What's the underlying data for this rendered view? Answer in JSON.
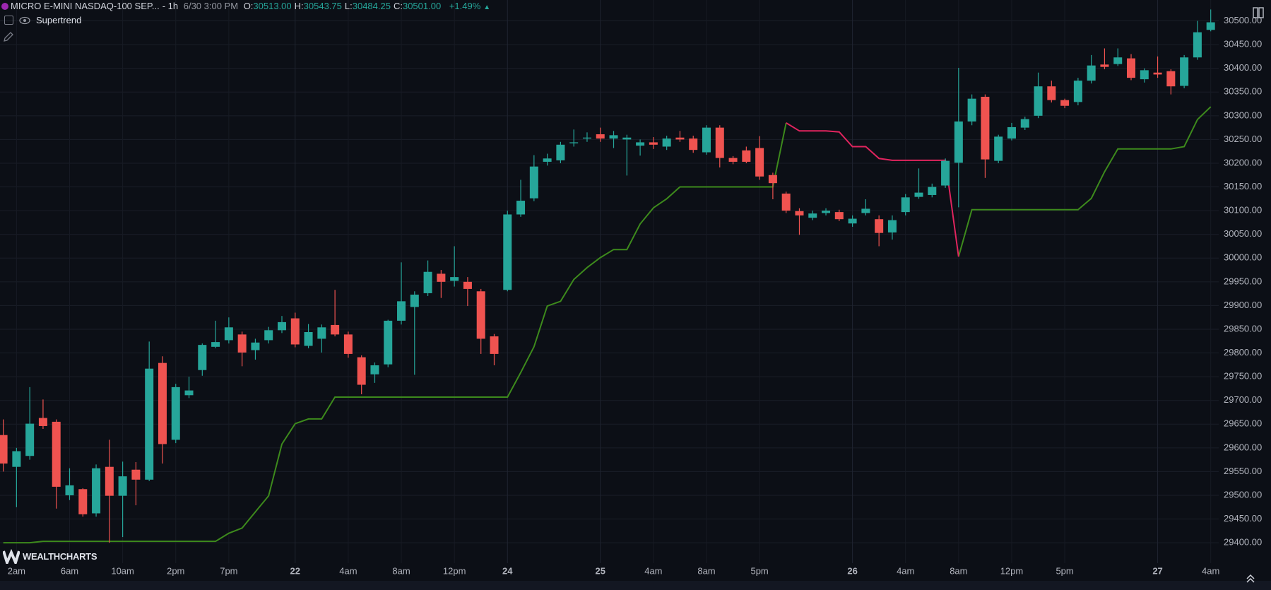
{
  "header": {
    "symbol": "MICRO E-MINI NASDAQ-100 SEP...",
    "interval": "- 1h",
    "datetime": "6/30 3:00 PM",
    "ohlc": [
      {
        "label": "O:",
        "value": "30513.00"
      },
      {
        "label": "H:",
        "value": "30543.75"
      },
      {
        "label": "L:",
        "value": "30484.25"
      },
      {
        "label": "C:",
        "value": "30501.00"
      }
    ],
    "change": "+1.49%"
  },
  "logo": "WEALTHCHARTS",
  "chart_data": {
    "type": "candlestick",
    "categories": [
      null,
      "2am",
      null,
      null,
      null,
      "6am",
      null,
      null,
      null,
      "10am",
      null,
      null,
      null,
      "2pm",
      null,
      null,
      null,
      "7pm",
      null,
      null,
      null,
      null,
      "22",
      null,
      null,
      null,
      "4am",
      null,
      null,
      null,
      "8am",
      null,
      null,
      null,
      "12pm",
      null,
      null,
      null,
      "24",
      null,
      null,
      null,
      null,
      null,
      null,
      "25",
      null,
      null,
      null,
      "4am",
      null,
      null,
      null,
      "8am",
      null,
      null,
      null,
      "5pm",
      null,
      null,
      null,
      null,
      null,
      null,
      "26",
      null,
      null,
      null,
      "4am",
      null,
      null,
      null,
      "8am",
      null,
      null,
      null,
      "12pm",
      null,
      null,
      null,
      "5pm",
      null,
      null,
      null,
      null,
      null,
      null,
      "27",
      null,
      null,
      null,
      "4am"
    ],
    "open": [
      29627,
      29560,
      29583,
      29663,
      29655,
      29500,
      29513,
      29462,
      29560,
      29499,
      29554,
      29533,
      29779,
      29617,
      29711,
      29764,
      29813,
      29827,
      29839,
      29806,
      29827,
      29848,
      29873,
      29815,
      29830,
      29859,
      29839,
      29791,
      29755,
      29776,
      29868,
      29897,
      29926,
      29967,
      29952,
      29950,
      29930,
      29835,
      29933,
      30092,
      30126,
      30203,
      30206,
      30242,
      30252,
      30261,
      30252,
      30250,
      30237,
      30244,
      30235,
      30254,
      30252,
      30223,
      30275,
      30211,
      30227,
      30232,
      30175,
      30136,
      30099,
      30085,
      30095,
      30097,
      30073,
      30095,
      30082,
      30054,
      30097,
      30129,
      30133,
      30153,
      30201,
      30288,
      30340,
      30205,
      30252,
      30275,
      30300,
      30362,
      30333,
      30329,
      30374,
      30408,
      30409,
      30421,
      30377,
      30391,
      30394,
      30363,
      30423,
      30481
    ],
    "high": [
      29660,
      29600,
      29728,
      29702,
      29660,
      29557,
      29515,
      29565,
      29617,
      29571,
      29570,
      29824,
      29793,
      29735,
      29750,
      29820,
      29868,
      29875,
      29845,
      29830,
      29855,
      29878,
      29885,
      29861,
      29860,
      29933,
      29845,
      29795,
      29780,
      29870,
      29991,
      29930,
      29995,
      29975,
      30025,
      29960,
      29935,
      29840,
      30100,
      30165,
      30217,
      30220,
      30245,
      30271,
      30265,
      30275,
      30268,
      30260,
      30250,
      30255,
      30258,
      30268,
      30258,
      30280,
      30280,
      30215,
      30235,
      30257,
      30180,
      30140,
      30105,
      30100,
      30105,
      30102,
      30090,
      30124,
      30090,
      30090,
      30135,
      30189,
      30157,
      30210,
      30401,
      30345,
      30345,
      30260,
      30285,
      30298,
      30391,
      30374,
      30336,
      30380,
      30428,
      30442,
      30442,
      30430,
      30400,
      30425,
      30398,
      30428,
      30500,
      30524
    ],
    "low": [
      29550,
      29475,
      29575,
      29640,
      29472,
      29490,
      29455,
      29455,
      29400,
      29412,
      29479,
      29530,
      29567,
      29610,
      29705,
      29752,
      29810,
      29820,
      29772,
      29786,
      29820,
      29842,
      29812,
      29810,
      29801,
      29835,
      29790,
      29713,
      29737,
      29770,
      29860,
      29754,
      29920,
      29916,
      29940,
      29899,
      29798,
      29774,
      29930,
      30087,
      30120,
      30195,
      30200,
      30235,
      30245,
      30245,
      30232,
      30174,
      30216,
      30230,
      30228,
      30245,
      30222,
      30218,
      30191,
      30198,
      30200,
      30165,
      30124,
      30095,
      30049,
      30080,
      30090,
      30078,
      30066,
      30090,
      30025,
      30039,
      30090,
      30125,
      30128,
      30148,
      30107,
      30280,
      30169,
      30200,
      30248,
      30270,
      30295,
      30328,
      30316,
      30322,
      30368,
      30398,
      30405,
      30375,
      30370,
      30380,
      30345,
      30358,
      30418,
      30478
    ],
    "close": [
      29567,
      29593,
      29651,
      29646,
      29518,
      29521,
      29460,
      29557,
      29499,
      29540,
      29533,
      29767,
      29608,
      29728,
      29721,
      29817,
      29823,
      29854,
      29801,
      29822,
      29848,
      29865,
      29818,
      29844,
      29854,
      29839,
      29798,
      29733,
      29774,
      29868,
      29909,
      29923,
      29971,
      29950,
      29960,
      29935,
      29830,
      29798,
      30092,
      30121,
      30193,
      30210,
      30239,
      30244,
      30254,
      30252,
      30259,
      30254,
      30244,
      30239,
      30252,
      30250,
      30228,
      30275,
      30211,
      30203,
      30203,
      30172,
      30158,
      30100,
      30090,
      30094,
      30100,
      30082,
      30083,
      30104,
      30053,
      30080,
      30128,
      30138,
      30150,
      30205,
      30288,
      30336,
      30208,
      30256,
      30276,
      30293,
      30362,
      30333,
      30321,
      30374,
      30406,
      30403,
      30423,
      30380,
      30396,
      30387,
      30362,
      30423,
      30476,
      30497
    ],
    "up_color": "#26a69a",
    "down_color": "#ef5350",
    "ylim": [
      29357,
      30544
    ],
    "yticks": [
      {
        "value": 29400,
        "label": "29400.00"
      },
      {
        "value": 29450,
        "label": "29450.00"
      },
      {
        "value": 29500,
        "label": "29500.00"
      },
      {
        "value": 29550,
        "label": "29550.00"
      },
      {
        "value": 29600,
        "label": "29600.00"
      },
      {
        "value": 29650,
        "label": "29650.00"
      },
      {
        "value": 29700,
        "label": "29700.00"
      },
      {
        "value": 29750,
        "label": "29750.00"
      },
      {
        "value": 29800,
        "label": "29800.00"
      },
      {
        "value": 29850,
        "label": "29850.00"
      },
      {
        "value": 29900,
        "label": "29900.00"
      },
      {
        "value": 29950,
        "label": "29950.00"
      },
      {
        "value": 30000,
        "label": "30000.00"
      },
      {
        "value": 30050,
        "label": "30050.00"
      },
      {
        "value": 30100,
        "label": "30100.00"
      },
      {
        "value": 30150,
        "label": "30150.00"
      },
      {
        "value": 30200,
        "label": "30200.00"
      },
      {
        "value": 30250,
        "label": "30250.00"
      },
      {
        "value": 30300,
        "label": "30300.00"
      },
      {
        "value": 30350,
        "label": "30350.00"
      },
      {
        "value": 30400,
        "label": "30400.00"
      },
      {
        "value": 30450,
        "label": "30450.00"
      },
      {
        "value": 30500,
        "label": "30500.00"
      }
    ],
    "grid": true,
    "overlay": {
      "name": "Supertrend",
      "up_color": "#3d8a1c",
      "down_color": "#e0245e",
      "up": [
        29400,
        29400,
        29400,
        29403,
        29403,
        29403,
        29403,
        29403,
        29403,
        29403,
        29403,
        29403,
        29403,
        29403,
        29403,
        29403,
        29403,
        29420,
        29431,
        29465,
        29499,
        29608,
        29651,
        29661,
        29661,
        29707,
        29707,
        29707,
        29707,
        29707,
        29707,
        29707,
        29707,
        29707,
        29707,
        29707,
        29707,
        29707,
        29707,
        29759,
        29813,
        29899,
        29909,
        29955,
        29980,
        30001,
        30018,
        30018,
        30072,
        30106,
        30125,
        30150,
        30150,
        30150,
        30150,
        30150,
        30150,
        30150,
        30150,
        30285,
        null,
        null,
        null,
        null,
        null,
        null,
        null,
        null,
        null,
        null,
        null,
        null,
        30003,
        30102,
        30102,
        30102,
        30102,
        30102,
        30102,
        30102,
        30102,
        30102,
        30126,
        30182,
        30230,
        30230,
        30230,
        30230,
        30230,
        30235,
        30292,
        30319
      ],
      "down": [
        null,
        null,
        null,
        null,
        null,
        null,
        null,
        null,
        null,
        null,
        null,
        null,
        null,
        null,
        null,
        null,
        null,
        null,
        null,
        null,
        null,
        null,
        null,
        null,
        null,
        null,
        null,
        null,
        null,
        null,
        null,
        null,
        null,
        null,
        null,
        null,
        null,
        null,
        null,
        null,
        null,
        null,
        null,
        null,
        null,
        null,
        null,
        null,
        null,
        null,
        null,
        null,
        null,
        null,
        null,
        null,
        null,
        null,
        null,
        30285,
        30268,
        30268,
        30268,
        30266,
        30235,
        30235,
        30210,
        30206,
        30206,
        30206,
        30206,
        30206,
        30003,
        null,
        null,
        null,
        null,
        null,
        null,
        null,
        null,
        null,
        null,
        null,
        null,
        null,
        null,
        null,
        null,
        null,
        null,
        null
      ]
    }
  }
}
